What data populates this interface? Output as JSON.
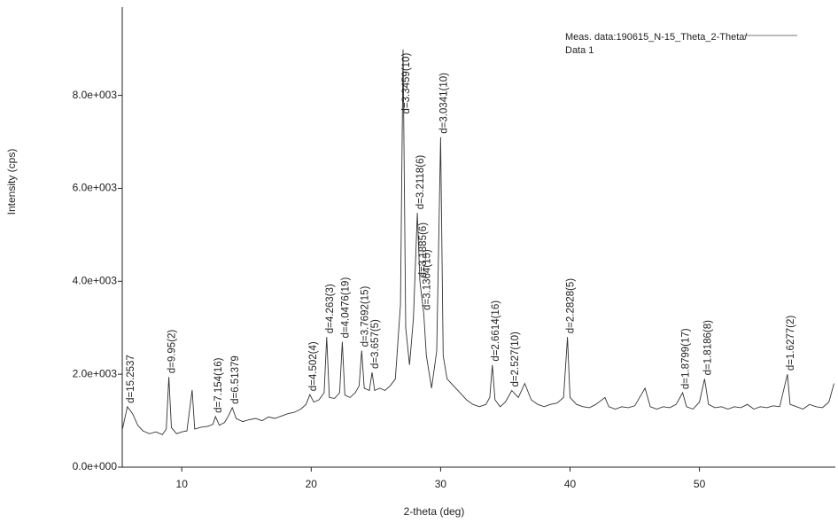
{
  "chart_data": {
    "type": "line",
    "x_label": "2-theta (deg)",
    "y_label": "Intensity (cps)",
    "xlim": [
      5.4,
      60.5
    ],
    "ylim": [
      0,
      9900
    ],
    "xticks": [
      10,
      20,
      30,
      40,
      50
    ],
    "yticks": [
      {
        "value": 0,
        "label": "0.0e+000"
      },
      {
        "value": 2000,
        "label": "2.0e+003"
      },
      {
        "value": 4000,
        "label": "4.0e+003"
      },
      {
        "value": 6000,
        "label": "6.0e+003"
      },
      {
        "value": 8000,
        "label": "8.0e+003"
      }
    ],
    "legend": "top-right",
    "x": [
      5.4,
      5.8,
      6.2,
      6.6,
      7.0,
      7.5,
      8.0,
      8.5,
      8.8,
      9.0,
      9.2,
      9.6,
      10.0,
      10.4,
      10.8,
      11.0,
      11.5,
      12.0,
      12.4,
      12.6,
      12.9,
      13.3,
      13.6,
      13.9,
      14.2,
      14.7,
      15.2,
      15.7,
      16.2,
      16.7,
      17.2,
      17.7,
      18.2,
      18.7,
      19.2,
      19.6,
      19.9,
      20.2,
      20.6,
      21.0,
      21.2,
      21.4,
      21.8,
      22.2,
      22.4,
      22.6,
      23.0,
      23.4,
      23.7,
      23.9,
      24.1,
      24.5,
      24.7,
      24.9,
      25.3,
      25.7,
      26.1,
      26.5,
      26.9,
      27.1,
      27.3,
      27.6,
      27.9,
      28.2,
      28.4,
      28.7,
      28.9,
      29.3,
      29.7,
      30.0,
      30.2,
      30.5,
      31.0,
      31.5,
      32.0,
      32.5,
      33.0,
      33.5,
      33.8,
      34.0,
      34.2,
      34.6,
      35.0,
      35.5,
      36.0,
      36.5,
      37.0,
      37.5,
      38.0,
      38.5,
      39.0,
      39.5,
      39.8,
      40.0,
      40.5,
      41.0,
      41.5,
      42.0,
      42.7,
      43.0,
      43.5,
      44.0,
      44.5,
      45.0,
      45.8,
      46.2,
      46.7,
      47.2,
      47.7,
      48.2,
      48.7,
      49.0,
      49.5,
      50.0,
      50.4,
      50.7,
      51.2,
      51.7,
      52.2,
      52.7,
      53.2,
      53.7,
      54.2,
      54.7,
      55.2,
      55.7,
      56.2,
      56.8,
      57.0,
      57.5,
      58.0,
      58.5,
      59.0,
      59.5,
      60.0,
      60.4
    ],
    "series": [
      {
        "name": "Meas. data:190615_N-15_Theta_2-Theta/ Data 1",
        "color": "#333333",
        "values": [
          800,
          1300,
          1150,
          900,
          780,
          720,
          760,
          700,
          820,
          1940,
          850,
          720,
          760,
          780,
          1660,
          820,
          860,
          880,
          920,
          1090,
          900,
          960,
          1100,
          1280,
          1050,
          980,
          1020,
          1050,
          1000,
          1080,
          1050,
          1100,
          1150,
          1180,
          1250,
          1350,
          1560,
          1400,
          1450,
          1600,
          2800,
          1500,
          1480,
          1600,
          2700,
          1550,
          1500,
          1600,
          1750,
          2510,
          1700,
          1650,
          2040,
          1650,
          1700,
          1650,
          1750,
          1900,
          3500,
          8990,
          3000,
          2200,
          3200,
          5470,
          4000,
          3300,
          2400,
          1700,
          2500,
          7100,
          2400,
          1900,
          1750,
          1600,
          1450,
          1350,
          1300,
          1350,
          1500,
          2200,
          1450,
          1300,
          1400,
          1650,
          1500,
          1800,
          1450,
          1350,
          1300,
          1350,
          1380,
          1500,
          2800,
          1500,
          1350,
          1300,
          1280,
          1350,
          1500,
          1300,
          1250,
          1300,
          1280,
          1320,
          1700,
          1300,
          1250,
          1300,
          1280,
          1350,
          1600,
          1300,
          1250,
          1400,
          1900,
          1350,
          1280,
          1300,
          1250,
          1300,
          1280,
          1350,
          1250,
          1300,
          1280,
          1320,
          1300,
          2000,
          1350,
          1300,
          1250,
          1350,
          1300,
          1280,
          1400,
          1800
        ]
      }
    ],
    "annotations": [
      {
        "text": "d=15.2537",
        "x": 5.8
      },
      {
        "text": "d=9.95(2)",
        "x": 9.0
      },
      {
        "text": "d=7.154(16)",
        "x": 12.6
      },
      {
        "text": "d=6.51379",
        "x": 13.9
      },
      {
        "text": "d=4.502(4)",
        "x": 19.9
      },
      {
        "text": "d=4.263(3)",
        "x": 21.2
      },
      {
        "text": "d=4.0476(19)",
        "x": 22.4
      },
      {
        "text": "d=3.7692(15)",
        "x": 23.9
      },
      {
        "text": "d=3.657(5)",
        "x": 24.7
      },
      {
        "text": "d=3.3459(10)",
        "x": 27.1
      },
      {
        "text": "d=3.2118(6)",
        "x": 28.2
      },
      {
        "text": "d=3.1885(6)",
        "x": 28.4
      },
      {
        "text": "d=3.1364(15)",
        "x": 28.7
      },
      {
        "text": "d=3.0341(10)",
        "x": 30.0
      },
      {
        "text": "d=2.6614(16)",
        "x": 34.0
      },
      {
        "text": "d=2.527(10)",
        "x": 35.5
      },
      {
        "text": "d=2.2828(5)",
        "x": 39.8
      },
      {
        "text": "d=1.8799(17)",
        "x": 48.7
      },
      {
        "text": "d=1.8186(8)",
        "x": 50.4
      },
      {
        "text": "d=1.6277(2)",
        "x": 56.8
      }
    ]
  }
}
